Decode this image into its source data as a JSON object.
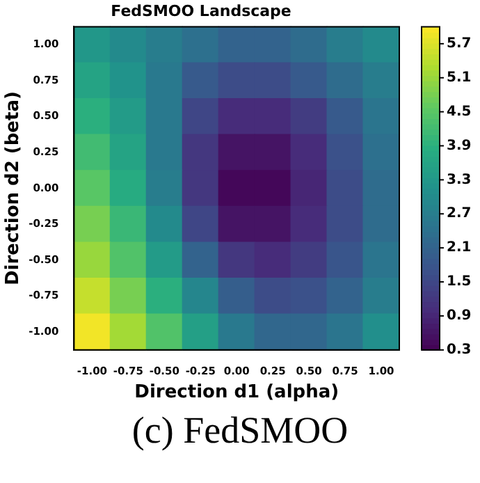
{
  "chart_data": {
    "type": "heatmap",
    "title": "FedSMOO Landscape",
    "xlabel": "Direction d1 (alpha)",
    "ylabel": "Direction d2 (beta)",
    "categories": [
      "-1.00",
      "-0.75",
      "-0.50",
      "-0.25",
      "0.00",
      "0.25",
      "0.50",
      "0.75",
      "1.00"
    ],
    "y_categories": [
      "1.00",
      "0.75",
      "0.50",
      "0.25",
      "0.00",
      "-0.25",
      "-0.50",
      "-0.75",
      "-1.00"
    ],
    "cells": [
      [
        3.3,
        3.0,
        2.7,
        2.4,
        2.1,
        2.1,
        2.3,
        2.7,
        3.0
      ],
      [
        3.6,
        3.2,
        2.6,
        1.9,
        1.6,
        1.6,
        1.9,
        2.3,
        2.7
      ],
      [
        3.9,
        3.4,
        2.6,
        1.5,
        1.0,
        1.0,
        1.3,
        1.9,
        2.5
      ],
      [
        4.2,
        3.6,
        2.6,
        1.2,
        0.6,
        0.6,
        1.0,
        1.7,
        2.4
      ],
      [
        4.5,
        3.8,
        2.7,
        1.2,
        0.4,
        0.4,
        0.9,
        1.6,
        2.3
      ],
      [
        4.8,
        4.1,
        3.0,
        1.5,
        0.6,
        0.6,
        1.0,
        1.6,
        2.3
      ],
      [
        5.1,
        4.4,
        3.4,
        2.1,
        1.2,
        1.0,
        1.3,
        1.8,
        2.5
      ],
      [
        5.5,
        4.8,
        3.9,
        2.9,
        2.0,
        1.6,
        1.7,
        2.1,
        2.7
      ],
      [
        5.9,
        5.2,
        4.4,
        3.5,
        2.6,
        2.2,
        2.2,
        2.5,
        3.1
      ]
    ],
    "clim": [
      0.3,
      6.0
    ],
    "cticks": [
      0.3,
      0.9,
      1.5,
      2.1,
      2.7,
      3.3,
      3.9,
      4.5,
      5.1,
      5.7
    ],
    "annotations": [
      "(c) FedSMOO"
    ]
  }
}
